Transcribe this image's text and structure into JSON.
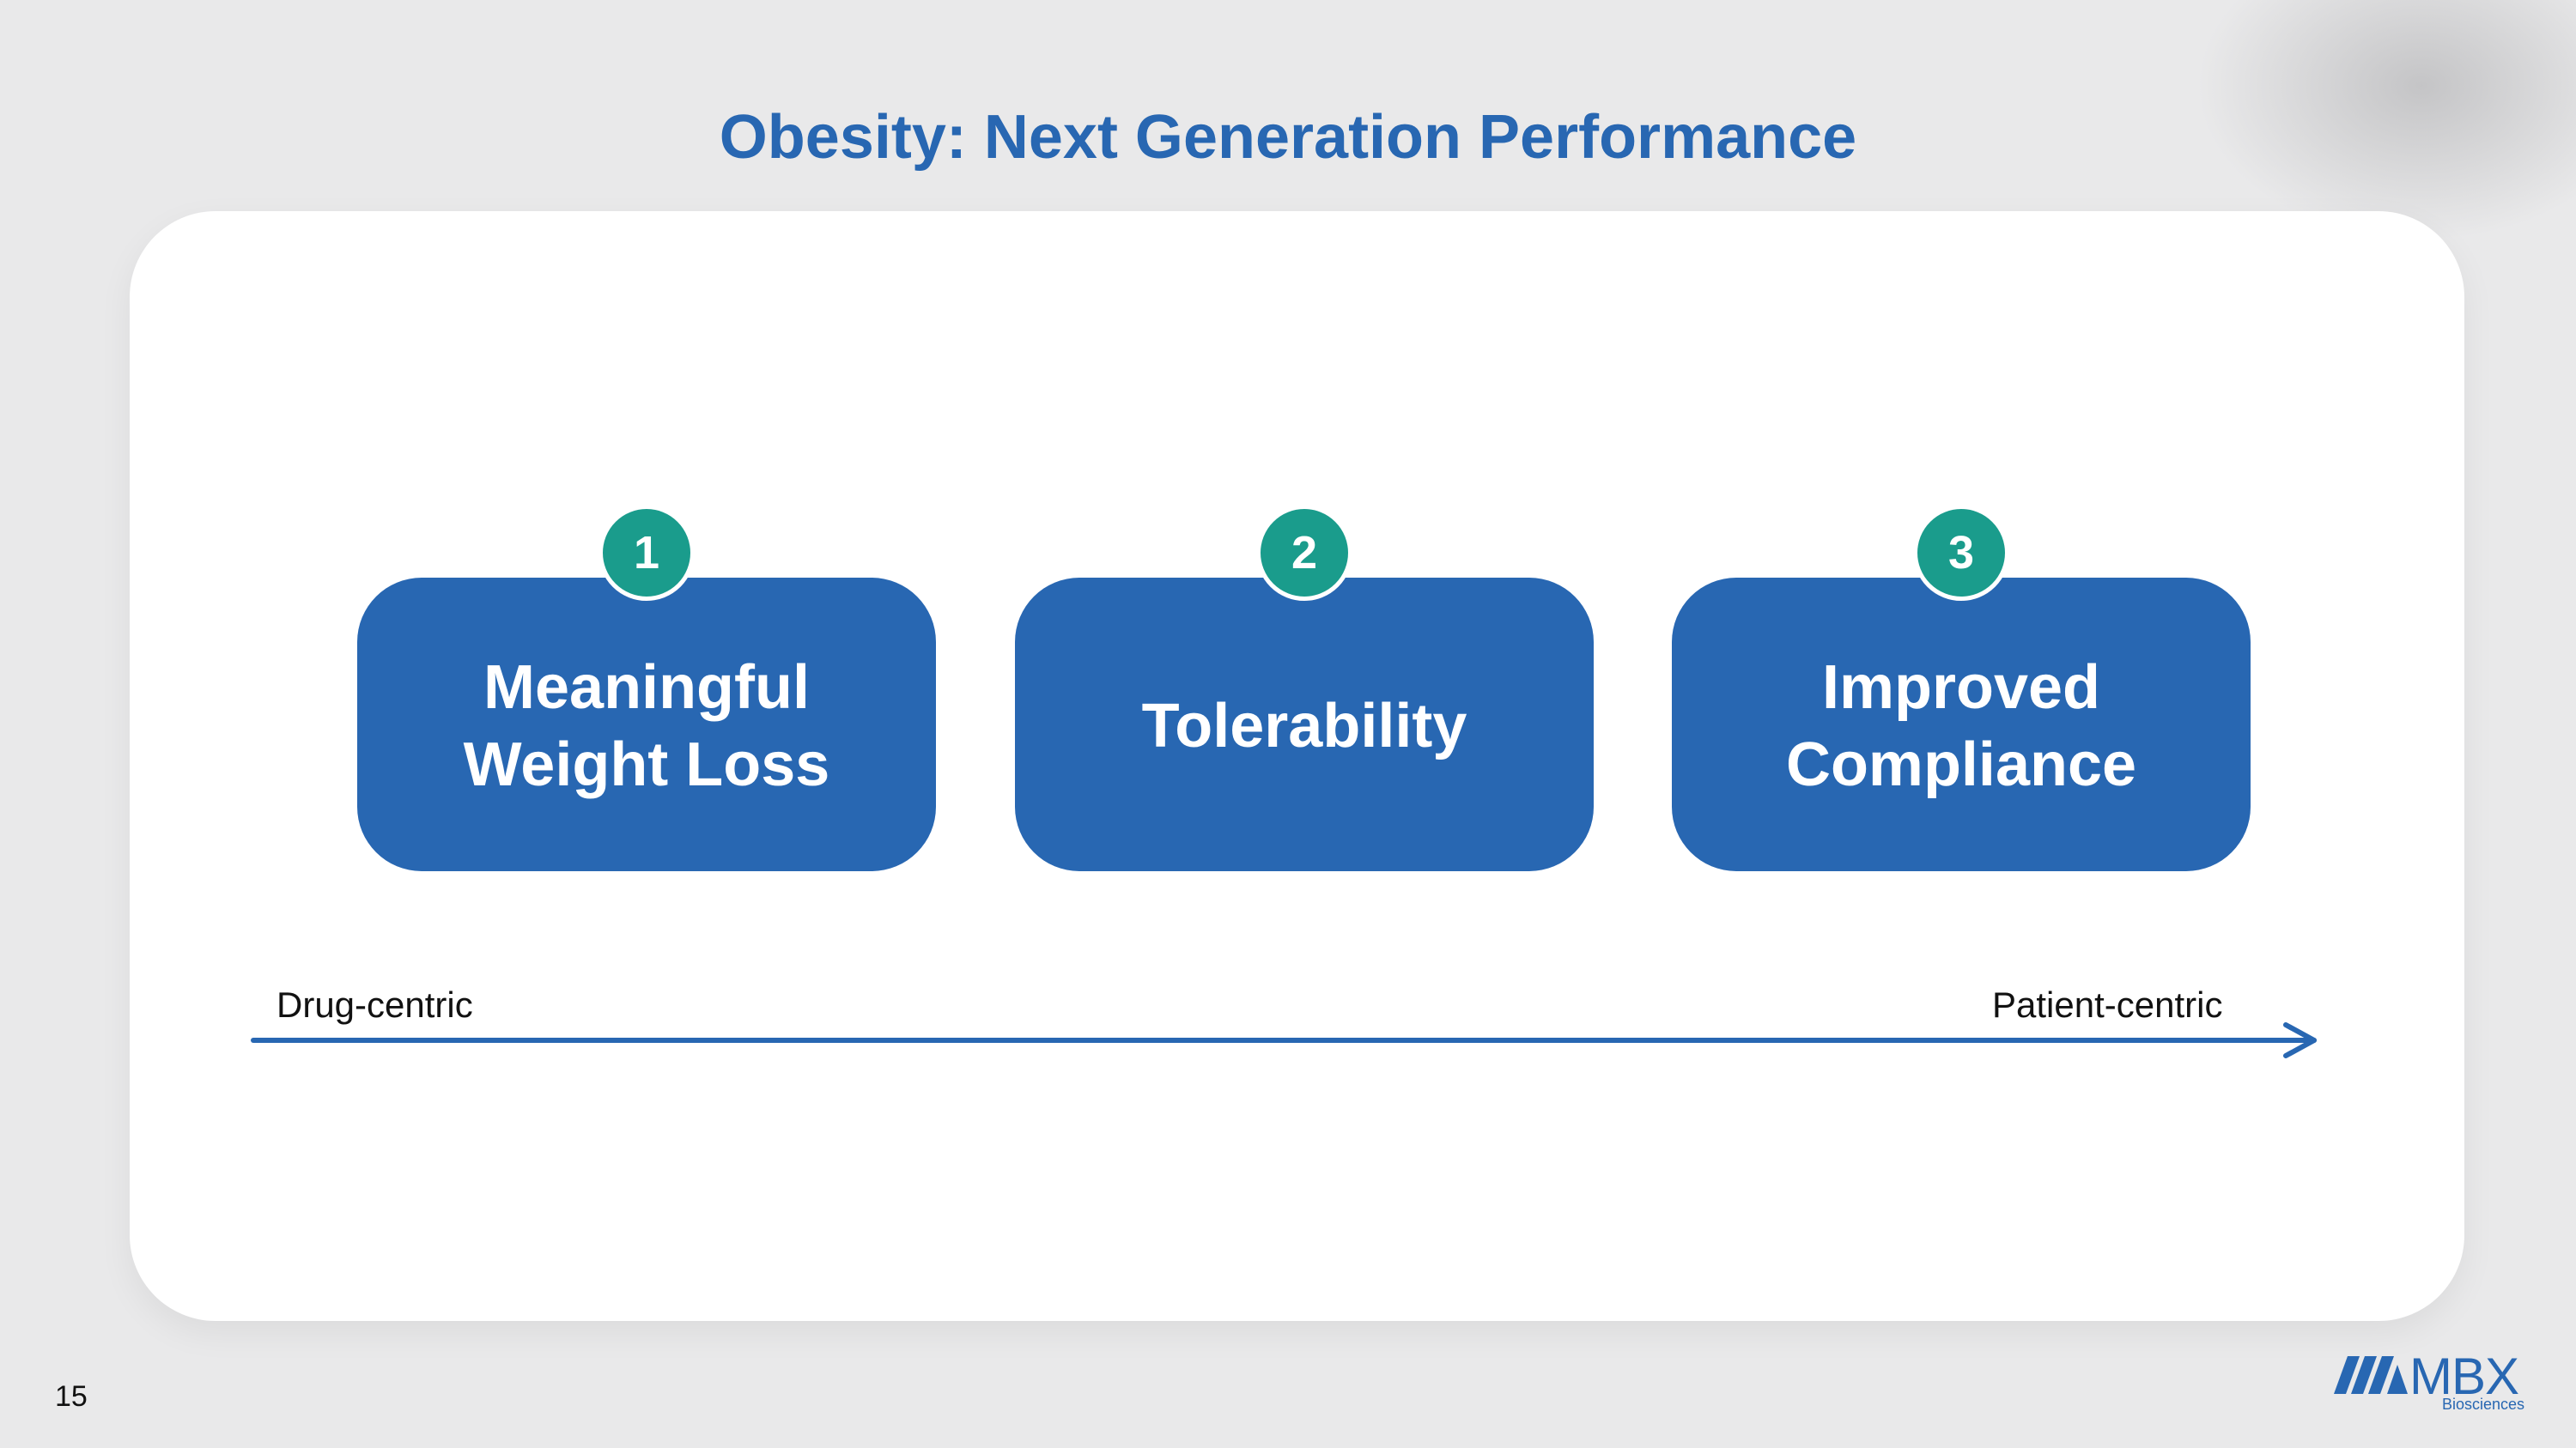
{
  "slide": {
    "title": "Obesity: Next Generation Performance",
    "page_number": "15"
  },
  "steps": [
    {
      "number": "1",
      "label": "Meaningful Weight Loss"
    },
    {
      "number": "2",
      "label": "Tolerability"
    },
    {
      "number": "3",
      "label": "Improved Compliance"
    }
  ],
  "scale": {
    "left_label": "Drug-centric",
    "right_label": "Patient-centric"
  },
  "logo": {
    "wordmark": "MBX",
    "subtitle": "Biosciences"
  },
  "colors": {
    "primary_blue": "#2867b2",
    "badge_teal": "#1a9c8c",
    "background": "#e9e9ea",
    "panel": "#ffffff"
  }
}
